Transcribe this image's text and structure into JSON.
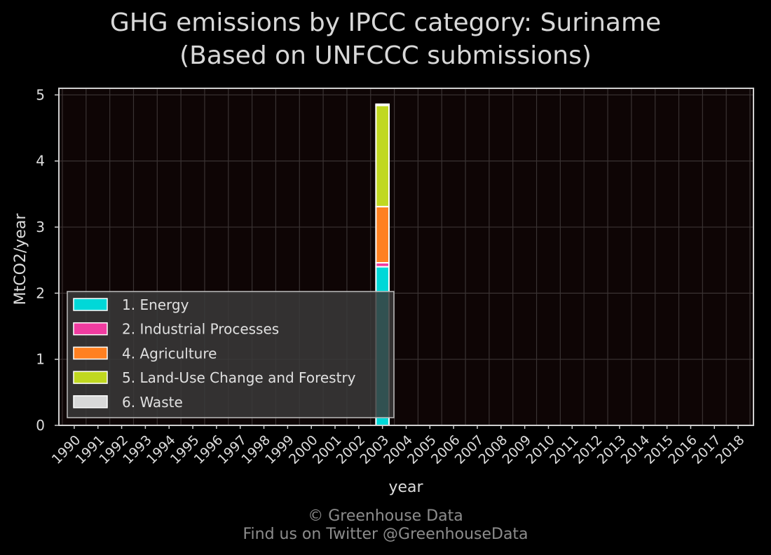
{
  "chart_data": {
    "type": "bar",
    "stacked": true,
    "title_line1": "GHG emissions by IPCC category: Suriname",
    "title_line2": "(Based on UNFCCC submissions)",
    "xlabel": "year",
    "ylabel": "MtCO2/year",
    "ylim": [
      0,
      5.1
    ],
    "yticks": [
      0,
      1,
      2,
      3,
      4,
      5
    ],
    "grid": true,
    "legend_position": "lower-left",
    "categories": [
      "1990",
      "1991",
      "1992",
      "1993",
      "1994",
      "1995",
      "1996",
      "1997",
      "1998",
      "1999",
      "2000",
      "2001",
      "2002",
      "2003",
      "2004",
      "2005",
      "2006",
      "2007",
      "2008",
      "2009",
      "2010",
      "2011",
      "2012",
      "2013",
      "2014",
      "2015",
      "2016",
      "2017",
      "2018"
    ],
    "series": [
      {
        "name": "1. Energy",
        "color": "#00d8d8",
        "values": [
          0,
          0,
          0,
          0,
          0,
          0,
          0,
          0,
          0,
          0,
          0,
          0,
          0,
          2.4,
          0,
          0,
          0,
          0,
          0,
          0,
          0,
          0,
          0,
          0,
          0,
          0,
          0,
          0,
          0
        ]
      },
      {
        "name": "2. Industrial Processes",
        "color": "#f03ca0",
        "values": [
          0,
          0,
          0,
          0,
          0,
          0,
          0,
          0,
          0,
          0,
          0,
          0,
          0,
          0.06,
          0,
          0,
          0,
          0,
          0,
          0,
          0,
          0,
          0,
          0,
          0,
          0,
          0,
          0,
          0
        ]
      },
      {
        "name": "4. Agriculture",
        "color": "#ff8020",
        "values": [
          0,
          0,
          0,
          0,
          0,
          0,
          0,
          0,
          0,
          0,
          0,
          0,
          0,
          0.85,
          0,
          0,
          0,
          0,
          0,
          0,
          0,
          0,
          0,
          0,
          0,
          0,
          0,
          0,
          0
        ]
      },
      {
        "name": "5. Land-Use Change and Forestry",
        "color": "#c0d820",
        "values": [
          0,
          0,
          0,
          0,
          0,
          0,
          0,
          0,
          0,
          0,
          0,
          0,
          0,
          1.53,
          0,
          0,
          0,
          0,
          0,
          0,
          0,
          0,
          0,
          0,
          0,
          0,
          0,
          0,
          0
        ]
      },
      {
        "name": "6. Waste",
        "color": "#d8d8d8",
        "values": [
          0,
          0,
          0,
          0,
          0,
          0,
          0,
          0,
          0,
          0,
          0,
          0,
          0,
          0.02,
          0,
          0,
          0,
          0,
          0,
          0,
          0,
          0,
          0,
          0,
          0,
          0,
          0,
          0,
          0
        ]
      }
    ]
  },
  "footer": {
    "line1": "© Greenhouse Data",
    "line2": "Find us on Twitter @GreenhouseData"
  }
}
